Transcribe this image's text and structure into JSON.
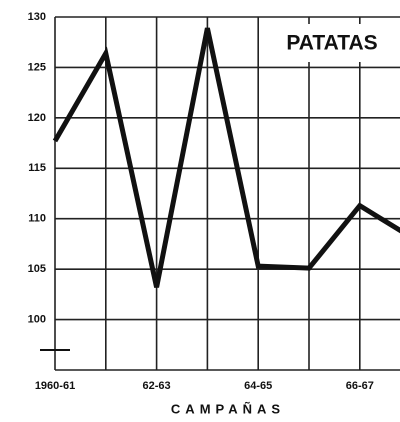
{
  "chart_data": {
    "type": "line",
    "title": "PATATAS",
    "x_label": "CAMPAÑAS",
    "categories": [
      "1960-61",
      null,
      "62-63",
      null,
      "64-65",
      null,
      "66-67",
      null
    ],
    "series": [
      {
        "name": "PATATAS",
        "color": "#111111",
        "values": [
          117.7,
          126.4,
          103.2,
          128.9,
          105.3,
          105.1,
          111.3,
          108.2
        ]
      }
    ],
    "ylim": [
      95,
      130
    ],
    "yticks": [
      100,
      105,
      110,
      115,
      120,
      125,
      130
    ],
    "grid": true
  }
}
